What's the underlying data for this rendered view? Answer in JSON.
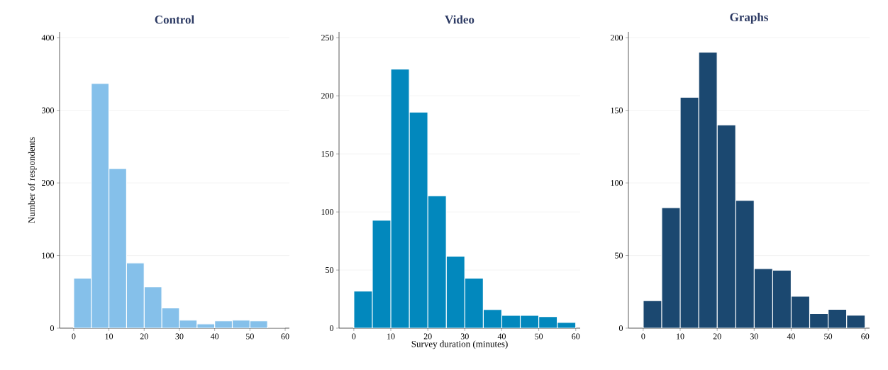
{
  "chart_data": [
    {
      "type": "histogram",
      "title": "Control",
      "ylabel": "Number of respondents",
      "color": "#85c0ea",
      "bins": [
        0,
        5,
        10,
        15,
        20,
        25,
        30,
        35,
        40,
        45,
        50,
        55,
        60
      ],
      "values": [
        69,
        337,
        220,
        90,
        57,
        28,
        11,
        6,
        10,
        11,
        10,
        0
      ],
      "xlim": [
        -4,
        61.2
      ],
      "ylim": [
        0,
        408
      ],
      "xticks": [
        0,
        10,
        20,
        30,
        40,
        50,
        60
      ],
      "yticks": [
        0,
        100,
        200,
        300,
        400
      ],
      "grid": "y"
    },
    {
      "type": "histogram",
      "title": "Video",
      "xlabel": "Survey duration (minutes)",
      "color": "#0288bd",
      "bins": [
        0,
        5,
        10,
        15,
        20,
        25,
        30,
        35,
        40,
        45,
        50,
        55,
        60
      ],
      "values": [
        32,
        93,
        223,
        186,
        114,
        62,
        43,
        16,
        11,
        11,
        10,
        5
      ],
      "xlim": [
        -4,
        61.2
      ],
      "ylim": [
        0,
        255
      ],
      "xticks": [
        0,
        10,
        20,
        30,
        40,
        50,
        60
      ],
      "yticks": [
        0,
        50,
        100,
        150,
        200,
        250
      ],
      "grid": "y"
    },
    {
      "type": "histogram",
      "title": "Graphs",
      "color": "#1b4870",
      "bins": [
        0,
        5,
        10,
        15,
        20,
        25,
        30,
        35,
        40,
        45,
        50,
        55,
        60
      ],
      "values": [
        19,
        83,
        159,
        190,
        140,
        88,
        41,
        40,
        22,
        10,
        13,
        9
      ],
      "xlim": [
        -4,
        61.2
      ],
      "ylim": [
        0,
        204
      ],
      "xticks": [
        0,
        10,
        20,
        30,
        40,
        50,
        60
      ],
      "yticks": [
        0,
        50,
        100,
        150,
        200
      ],
      "grid": "y"
    }
  ]
}
